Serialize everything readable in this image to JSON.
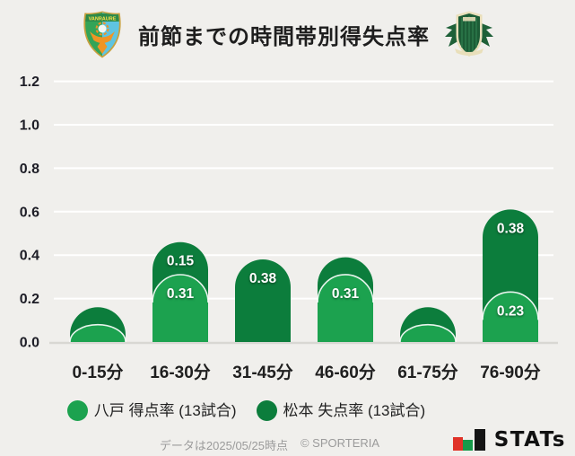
{
  "header": {
    "title": "前節までの時間帯別得失点率",
    "left_crest_text": "VANRAURE"
  },
  "chart_data": {
    "type": "bar",
    "stacked": true,
    "title": "前節までの時間帯別得失点率",
    "categories": [
      "0-15分",
      "16-30分",
      "31-45分",
      "46-60分",
      "61-75分",
      "76-90分"
    ],
    "series": [
      {
        "name": "八戸 得点率",
        "legend_label": "八戸 得点率 (13試合)",
        "color": "#1ca24f",
        "values": [
          0.08,
          0.31,
          0.0,
          0.31,
          0.08,
          0.23
        ],
        "bar_labels": [
          "",
          "0.31",
          "",
          "0.31",
          "",
          "0.23"
        ]
      },
      {
        "name": "松本 失点率",
        "legend_label": "松本 失点率 (13試合)",
        "color": "#0c7d3c",
        "values": [
          0.08,
          0.15,
          0.38,
          0.08,
          0.08,
          0.38
        ],
        "bar_labels": [
          "",
          "0.15",
          "0.38",
          "",
          "",
          "0.38"
        ]
      }
    ],
    "ylim": [
      0,
      1.2
    ],
    "yticks": [
      "1.2",
      "1.0",
      "0.8",
      "0.6",
      "0.4",
      "0.2",
      "0.0"
    ],
    "grid": true,
    "legend_position": "bottom"
  },
  "footer": {
    "note": "データは2025/05/25時点",
    "copyright": "© SPORTERIA",
    "brand": "STATs"
  }
}
